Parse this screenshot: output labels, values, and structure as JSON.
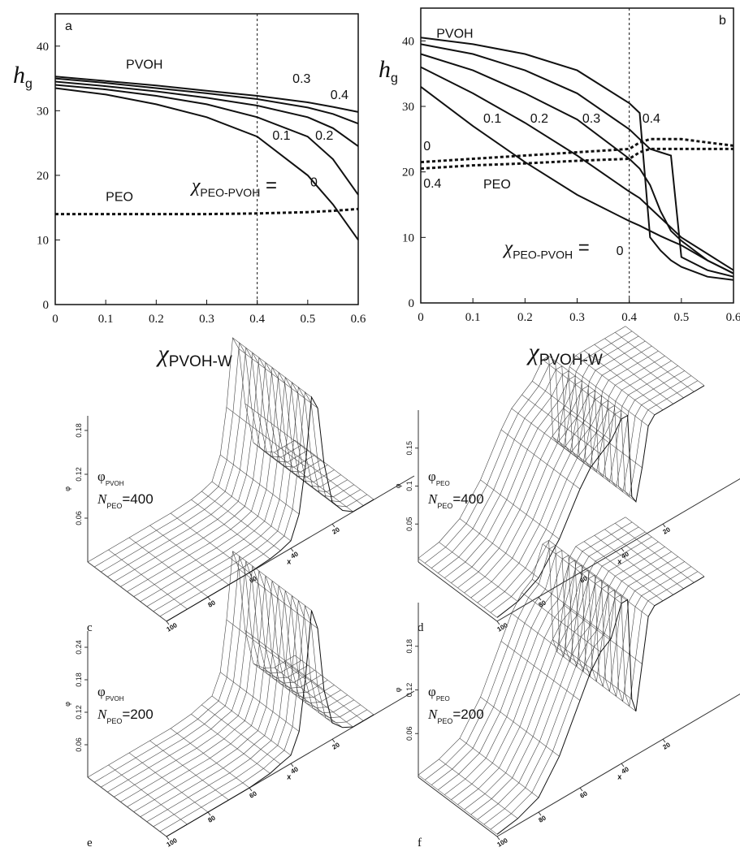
{
  "chart_data": [
    {
      "type": "line",
      "panel": "a",
      "ylabel": {
        "main": "h",
        "sub": "g"
      },
      "xlabel": {
        "main": "χ",
        "sub": "PVOH-W"
      },
      "x": [
        0,
        0.1,
        0.2,
        0.3,
        0.4,
        0.5,
        0.55,
        0.6
      ],
      "xlim": [
        0,
        0.6
      ],
      "ylim": [
        0,
        45
      ],
      "xticks": [
        0,
        0.1,
        0.2,
        0.3,
        0.4,
        0.5,
        0.6
      ],
      "yticks": [
        0,
        10,
        20,
        30,
        40
      ],
      "vline": 0.4,
      "annotations": [
        {
          "main": "PVOH"
        },
        {
          "main": "χ",
          "sub": "PEO-PVOH",
          "tail": " ="
        }
      ],
      "series": [
        {
          "name": "0",
          "color": "#111111",
          "dash": false,
          "values": [
            33.5,
            32.5,
            31,
            29,
            26,
            20,
            15.5,
            10
          ]
        },
        {
          "name": "0.1",
          "color": "#111111",
          "dash": false,
          "values": [
            34,
            33.3,
            32.3,
            31,
            29,
            26,
            22.5,
            17
          ]
        },
        {
          "name": "0.2",
          "color": "#111111",
          "dash": false,
          "values": [
            34.5,
            33.8,
            33,
            32,
            30.8,
            29,
            27.3,
            24.5
          ]
        },
        {
          "name": "0.3",
          "color": "#111111",
          "dash": false,
          "values": [
            35,
            34.3,
            33.5,
            32.7,
            31.8,
            30.5,
            29.5,
            28
          ]
        },
        {
          "name": "0.4",
          "color": "#111111",
          "dash": false,
          "values": [
            35.3,
            34.6,
            33.9,
            33.1,
            32.3,
            31.3,
            30.6,
            29.8
          ]
        },
        {
          "name": "PEO",
          "color": "#111111",
          "dash": true,
          "values": [
            14,
            14,
            14,
            14,
            14.1,
            14.3,
            14.5,
            14.8
          ]
        }
      ]
    },
    {
      "type": "line",
      "panel": "b",
      "ylabel": {
        "main": "h",
        "sub": "g"
      },
      "xlabel": {
        "main": "χ",
        "sub": "PVOH-W"
      },
      "x": [
        0,
        0.1,
        0.2,
        0.3,
        0.4,
        0.42,
        0.44,
        0.46,
        0.48,
        0.5,
        0.55,
        0.6
      ],
      "xlim": [
        0,
        0.6
      ],
      "ylim": [
        0,
        45
      ],
      "xticks": [
        0,
        0.1,
        0.2,
        0.3,
        0.4,
        0.5,
        0.6
      ],
      "yticks": [
        0,
        10,
        20,
        30,
        40
      ],
      "vline": 0.4,
      "annotations": [
        {
          "main": "PVOH"
        },
        {
          "main": "PEO"
        },
        {
          "main": "χ",
          "sub": "PEO-PVOH",
          "tail": " ="
        }
      ],
      "series": [
        {
          "name": "0",
          "color": "#111111",
          "dash": false,
          "values": [
            33,
            27,
            21.5,
            16.5,
            12.5,
            11.8,
            11,
            10.2,
            9.5,
            8.8,
            6.5,
            4.5
          ]
        },
        {
          "name": "0.1",
          "color": "#111111",
          "dash": false,
          "values": [
            36,
            32,
            27.5,
            22.5,
            17,
            16,
            14.5,
            13,
            11.5,
            10,
            7.5,
            5
          ]
        },
        {
          "name": "0.2",
          "color": "#111111",
          "dash": false,
          "values": [
            38,
            35.5,
            32,
            28,
            22,
            20.5,
            18,
            14,
            11,
            9.5,
            6.5,
            4.5
          ]
        },
        {
          "name": "0.3",
          "color": "#111111",
          "dash": false,
          "values": [
            39.5,
            38,
            35.5,
            32,
            26.5,
            25,
            23.5,
            23,
            22.5,
            7,
            5,
            4
          ]
        },
        {
          "name": "0.4",
          "color": "#111111",
          "dash": false,
          "values": [
            40.5,
            39.5,
            38,
            35.5,
            30.5,
            29,
            10,
            8,
            6.5,
            5.5,
            4,
            3.5
          ]
        },
        {
          "name": "0",
          "color": "#111111",
          "dash": true,
          "values": [
            21.5,
            22,
            22.5,
            23,
            23.5,
            24.5,
            25,
            25,
            25,
            25,
            24.5,
            24
          ]
        },
        {
          "name": "0.4",
          "color": "#111111",
          "dash": true,
          "values": [
            20.5,
            21,
            21.3,
            21.7,
            22,
            23,
            23.5,
            23.5,
            23.5,
            23.5,
            23.5,
            23.5
          ]
        }
      ]
    },
    {
      "type": "surface",
      "panel": "c",
      "label1": {
        "main": "φ",
        "sub": "PVOH"
      },
      "label2": {
        "main": "N",
        "sub": "PEO",
        "tail": "=400"
      },
      "zlabel": "φ",
      "xlabel": "x",
      "x": [
        100,
        90,
        80,
        70,
        60,
        50,
        45,
        40,
        36,
        33,
        30,
        27,
        24,
        20,
        15,
        10,
        5,
        0
      ],
      "values": [
        0,
        0,
        0,
        0,
        0,
        0.002,
        0.005,
        0.01,
        0.04,
        0.1,
        0.19,
        0.17,
        0.09,
        0.03,
        0.01,
        0,
        0,
        0
      ],
      "xlim": [
        100,
        0
      ],
      "xticks": [
        100,
        80,
        60,
        40,
        20
      ],
      "zlim": [
        0,
        0.2
      ],
      "zticks": [
        0.06,
        0.12,
        0.18
      ]
    },
    {
      "type": "surface",
      "panel": "d",
      "label1": {
        "main": "φ",
        "sub": "PEO"
      },
      "label2": {
        "main": "N",
        "sub": "PEO",
        "tail": "=400"
      },
      "zlabel": "φ",
      "xlabel": "x",
      "x": [
        100,
        90,
        80,
        70,
        60,
        55,
        50,
        45,
        40,
        37,
        35,
        33,
        30,
        27,
        24,
        20,
        15,
        10,
        5,
        0
      ],
      "values": [
        0.005,
        0.01,
        0.025,
        0.06,
        0.11,
        0.13,
        0.14,
        0.15,
        0.17,
        0.17,
        0.06,
        0.05,
        0.09,
        0.14,
        0.15,
        0.15,
        0.15,
        0.15,
        0.15,
        0.15
      ],
      "xlim": [
        100,
        0
      ],
      "xticks": [
        100,
        80,
        60,
        40,
        20
      ],
      "zlim": [
        0,
        0.2
      ],
      "zticks": [
        0.05,
        0.1,
        0.15
      ]
    },
    {
      "type": "surface",
      "panel": "e",
      "label1": {
        "main": "φ",
        "sub": "PVOH"
      },
      "label2": {
        "main": "N",
        "sub": "PEO",
        "tail": "=200"
      },
      "zlabel": "φ",
      "xlabel": "x",
      "x": [
        100,
        90,
        80,
        70,
        60,
        50,
        45,
        40,
        36,
        33,
        30,
        27,
        24,
        20,
        15,
        10,
        5,
        0
      ],
      "values": [
        0,
        0,
        0,
        0,
        0,
        0.004,
        0.01,
        0.015,
        0.05,
        0.14,
        0.26,
        0.22,
        0.1,
        0.03,
        0.01,
        0,
        0,
        0
      ],
      "xlim": [
        100,
        0
      ],
      "xticks": [
        100,
        80,
        60,
        40,
        20
      ],
      "zlim": [
        0,
        0.27
      ],
      "zticks": [
        0.06,
        0.12,
        0.18,
        0.24
      ]
    },
    {
      "type": "surface",
      "panel": "f",
      "label1": {
        "main": "φ",
        "sub": "PEO"
      },
      "label2": {
        "main": "N",
        "sub": "PEO",
        "tail": "=200"
      },
      "zlabel": "φ",
      "xlabel": "x",
      "x": [
        100,
        90,
        80,
        70,
        60,
        55,
        50,
        45,
        40,
        37,
        35,
        33,
        30,
        27,
        24,
        20,
        15,
        10,
        5,
        0
      ],
      "values": [
        0.003,
        0.008,
        0.02,
        0.06,
        0.12,
        0.15,
        0.17,
        0.18,
        0.22,
        0.22,
        0.08,
        0.06,
        0.12,
        0.18,
        0.19,
        0.19,
        0.19,
        0.19,
        0.19,
        0.19
      ],
      "xlim": [
        100,
        0
      ],
      "xticks": [
        100,
        80,
        60,
        40,
        20
      ],
      "zlim": [
        0,
        0.24
      ],
      "zticks": [
        0.06,
        0.12,
        0.18
      ]
    }
  ]
}
